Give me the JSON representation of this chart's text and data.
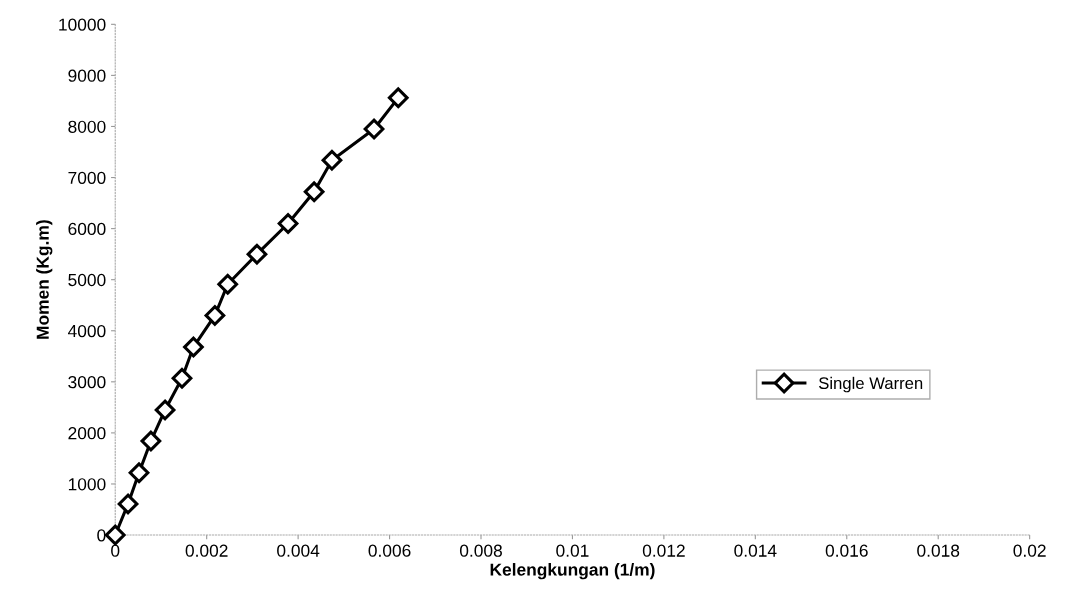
{
  "chart_data": {
    "type": "line",
    "xlabel": "Kelengkungan (1/m)",
    "ylabel": "Momen (Kg.m)",
    "x": [
      0,
      0.00028,
      0.00052,
      0.00078,
      0.00109,
      0.00146,
      0.00171,
      0.00218,
      0.00246,
      0.0031,
      0.00378,
      0.00435,
      0.00474,
      0.00566,
      0.00619
    ],
    "series": [
      {
        "name": "Single Warren",
        "color": "#000000",
        "values": [
          0,
          610,
          1220,
          1840,
          2450,
          3070,
          3680,
          4300,
          4910,
          5500,
          6100,
          6720,
          7340,
          7950,
          8560
        ]
      }
    ],
    "xlim": [
      0,
      0.02
    ],
    "xticks": [
      0,
      0.002,
      0.004,
      0.006,
      0.008,
      0.01,
      0.012,
      0.014,
      0.016,
      0.018,
      0.02
    ],
    "ylim": [
      0,
      10000
    ],
    "yticks": [
      0,
      1000,
      2000,
      3000,
      4000,
      5000,
      6000,
      7000,
      8000,
      9000,
      10000
    ],
    "grid": false,
    "legend": "lower right",
    "marker": "diamond",
    "line_style": "solid"
  }
}
